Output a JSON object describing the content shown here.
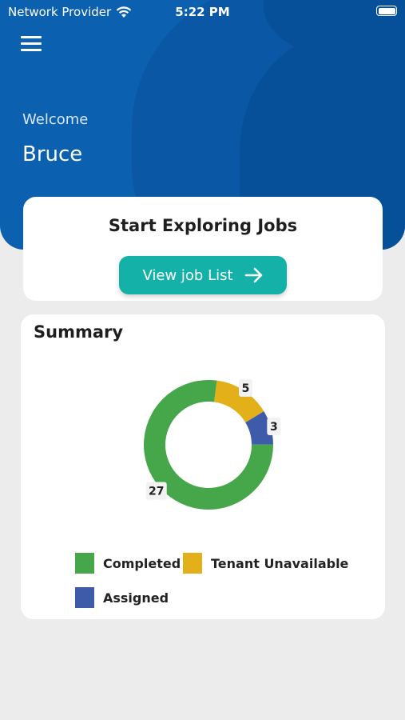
{
  "status_bar": {
    "carrier": "Network Provider",
    "time": "5:22 PM",
    "wifi_icon": "wifi-icon",
    "battery_icon": "battery-icon"
  },
  "header": {
    "menu_icon": "hamburger-menu-icon",
    "welcome_label": "Welcome",
    "user_name": "Bruce",
    "background_color": "#0b60b0"
  },
  "jobs_card": {
    "title": "Start Exploring Jobs",
    "button_label": "View job List",
    "button_icon": "arrow-right-icon",
    "button_color": "#14b1a9"
  },
  "summary": {
    "title": "Summary"
  },
  "chart_data": {
    "type": "pie",
    "title": "",
    "donut": true,
    "categories": [
      "Completed",
      "Tenant Unavailable",
      "Assigned"
    ],
    "values": [
      27,
      5,
      3
    ],
    "colors": [
      "#46a64a",
      "#e4b01a",
      "#3d5ba9"
    ],
    "data_labels": [
      "27",
      "5",
      "3"
    ],
    "legend_placement": "bottom"
  }
}
